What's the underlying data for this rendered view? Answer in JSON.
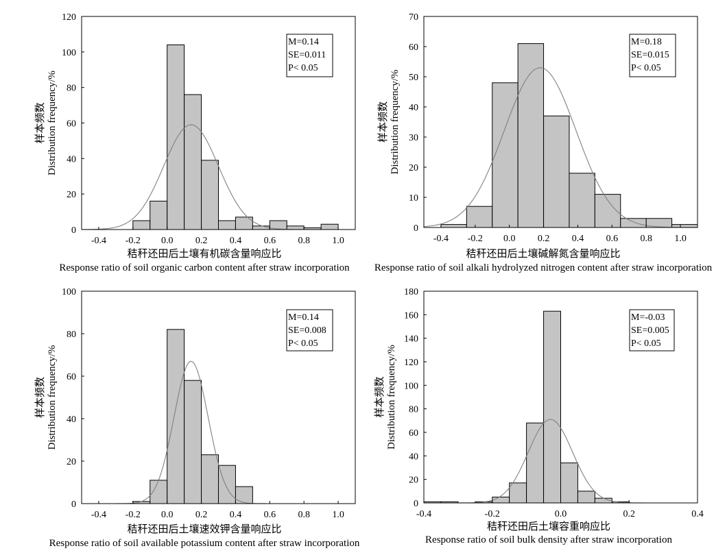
{
  "chart_data": [
    {
      "type": "histogram",
      "ylabel_cn": "样本频数",
      "ylabel_en": "Distribution frequency/%",
      "xlabel_cn": "秸秆还田后土壤有机碳含量响应比",
      "xlabel_en": "Response ratio of soil organic carbon content after straw incorporation",
      "xlim": [
        -0.5,
        1.1
      ],
      "ylim": [
        0,
        120
      ],
      "xticks": [
        "-0.4",
        "-0.2",
        "0.0",
        "0.2",
        "0.4",
        "0.6",
        "0.8",
        "1.0"
      ],
      "yticks": [
        "0",
        "20",
        "40",
        "60",
        "80",
        "100",
        "120"
      ],
      "bin_width": 0.1,
      "bins": [
        {
          "x0": -0.2,
          "value": 5
        },
        {
          "x0": -0.1,
          "value": 16
        },
        {
          "x0": 0.0,
          "value": 104
        },
        {
          "x0": 0.1,
          "value": 76
        },
        {
          "x0": 0.2,
          "value": 39
        },
        {
          "x0": 0.3,
          "value": 5
        },
        {
          "x0": 0.4,
          "value": 7
        },
        {
          "x0": 0.5,
          "value": 2
        },
        {
          "x0": 0.6,
          "value": 5
        },
        {
          "x0": 0.7,
          "value": 2
        },
        {
          "x0": 0.8,
          "value": 1
        },
        {
          "x0": 0.9,
          "value": 3
        }
      ],
      "fit_curve": {
        "mean": 0.14,
        "peak": 59,
        "sd": 0.16
      },
      "stats": [
        "M=0.14",
        "SE=0.011",
        "P< 0.05"
      ]
    },
    {
      "type": "histogram",
      "ylabel_cn": "样本频数",
      "ylabel_en": "Distribution frequency/%",
      "xlabel_cn": "秸秆还田后土壤碱解氮含量响应比",
      "xlabel_en": "Response ratio of soil alkali hydrolyzed nitrogen content after straw incorporation",
      "xlim": [
        -0.5,
        1.1
      ],
      "ylim": [
        0,
        70
      ],
      "xticks": [
        "-0.4",
        "-0.2",
        "0.0",
        "0.2",
        "0.4",
        "0.6",
        "0.8",
        "1.0"
      ],
      "yticks": [
        "0",
        "10",
        "20",
        "30",
        "40",
        "50",
        "60",
        "70"
      ],
      "bin_width": 0.15,
      "bins": [
        {
          "x0": -0.4,
          "value": 1
        },
        {
          "x0": -0.25,
          "value": 7
        },
        {
          "x0": -0.1,
          "value": 48
        },
        {
          "x0": 0.05,
          "value": 61
        },
        {
          "x0": 0.2,
          "value": 37
        },
        {
          "x0": 0.35,
          "value": 18
        },
        {
          "x0": 0.5,
          "value": 11
        },
        {
          "x0": 0.65,
          "value": 3
        },
        {
          "x0": 0.8,
          "value": 3
        },
        {
          "x0": 0.95,
          "value": 1
        }
      ],
      "fit_curve": {
        "mean": 0.18,
        "peak": 53,
        "sd": 0.21
      },
      "stats": [
        "M=0.18",
        "SE=0.015",
        "P< 0.05"
      ]
    },
    {
      "type": "histogram",
      "ylabel_cn": "样本频数",
      "ylabel_en": "Distribution frequency/%",
      "xlabel_cn": "秸秆还田后土壤速效钾含量响应比",
      "xlabel_en": "Response ratio of soil available potassium content after straw incorporation",
      "xlim": [
        -0.5,
        1.1
      ],
      "ylim": [
        0,
        100
      ],
      "xticks": [
        "-0.4",
        "-0.2",
        "0.0",
        "0.2",
        "0.4",
        "0.6",
        "0.8",
        "1.0"
      ],
      "yticks": [
        "0",
        "20",
        "40",
        "60",
        "80",
        "100"
      ],
      "bin_width": 0.1,
      "bins": [
        {
          "x0": -0.2,
          "value": 1
        },
        {
          "x0": -0.1,
          "value": 11
        },
        {
          "x0": 0.0,
          "value": 82
        },
        {
          "x0": 0.1,
          "value": 58
        },
        {
          "x0": 0.2,
          "value": 23
        },
        {
          "x0": 0.3,
          "value": 18
        },
        {
          "x0": 0.4,
          "value": 8
        }
      ],
      "fit_curve": {
        "mean": 0.14,
        "peak": 67,
        "sd": 0.1
      },
      "stats": [
        "M=0.14",
        "SE=0.008",
        "P< 0.05"
      ]
    },
    {
      "type": "histogram",
      "ylabel_cn": "样本频数",
      "ylabel_en": "Distribution frequency/%",
      "xlabel_cn": "秸秆还田后土壤容重响应比",
      "xlabel_en": "Response ratio of soil bulk density after straw incorporation",
      "xlim": [
        -0.4,
        0.4
      ],
      "ylim": [
        0,
        180
      ],
      "xticks": [
        "-0.4",
        "-0.2",
        "0.0",
        "0.2",
        "0.4"
      ],
      "yticks": [
        "0",
        "20",
        "40",
        "60",
        "80",
        "100",
        "120",
        "140",
        "160",
        "180"
      ],
      "bin_width": 0.05,
      "bins": [
        {
          "x0": -0.4,
          "value": 1
        },
        {
          "x0": -0.35,
          "value": 1
        },
        {
          "x0": -0.25,
          "value": 1
        },
        {
          "x0": -0.2,
          "value": 5
        },
        {
          "x0": -0.15,
          "value": 17
        },
        {
          "x0": -0.1,
          "value": 68
        },
        {
          "x0": -0.05,
          "value": 163
        },
        {
          "x0": 0.0,
          "value": 34
        },
        {
          "x0": 0.05,
          "value": 10
        },
        {
          "x0": 0.1,
          "value": 4
        },
        {
          "x0": 0.15,
          "value": 1
        }
      ],
      "fit_curve": {
        "mean": -0.03,
        "peak": 71,
        "sd": 0.065
      },
      "stats": [
        "M=-0.03",
        "SE=0.005",
        "P< 0.05"
      ]
    }
  ]
}
